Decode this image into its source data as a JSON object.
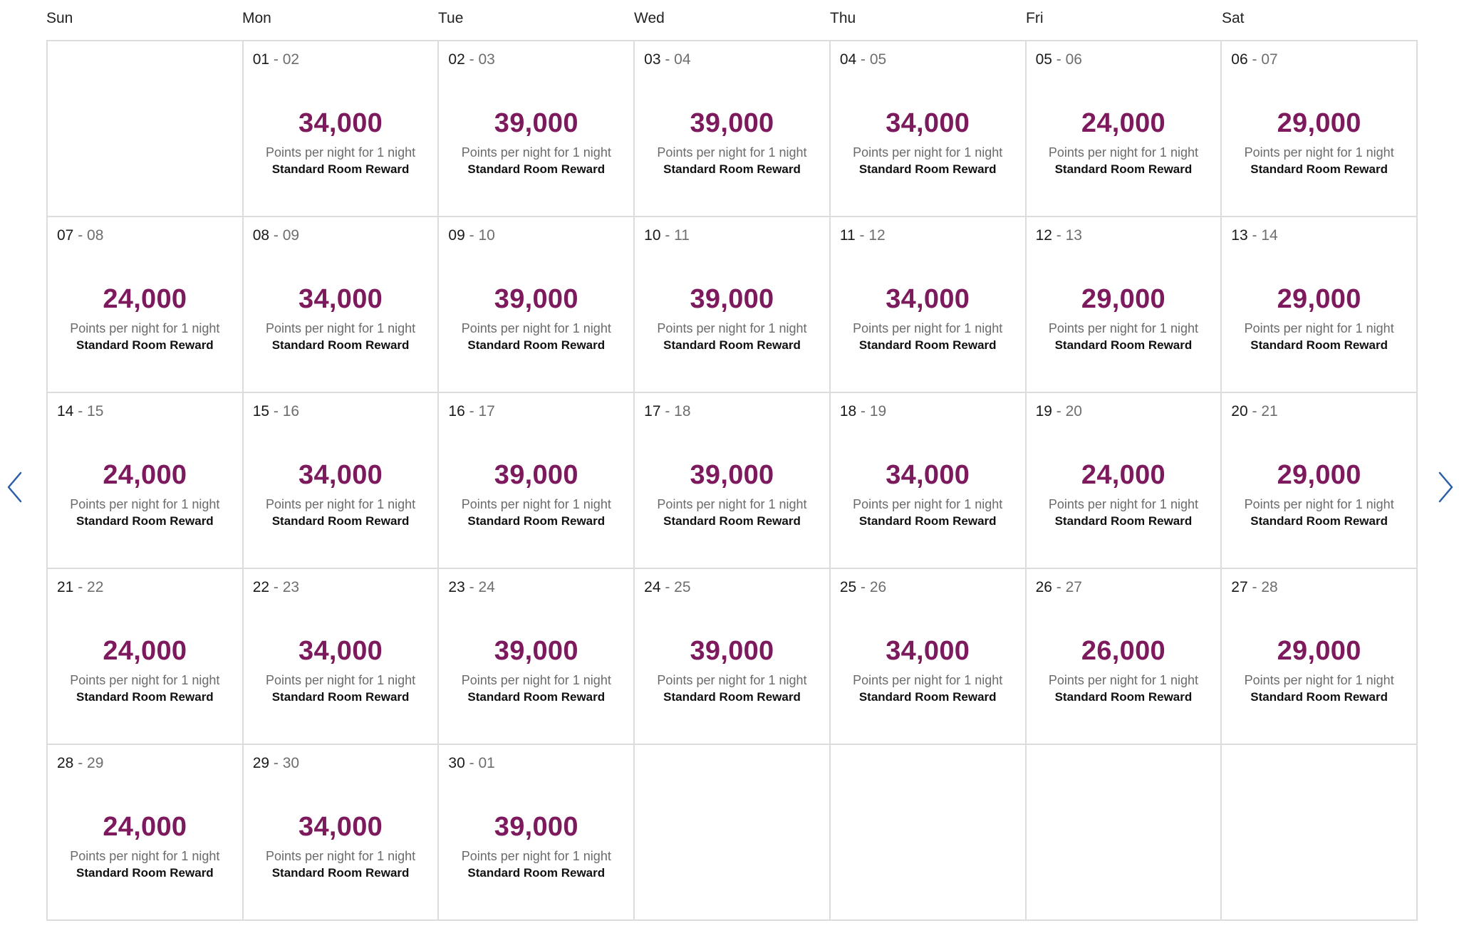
{
  "weekdays": [
    "Sun",
    "Mon",
    "Tue",
    "Wed",
    "Thu",
    "Fri",
    "Sat"
  ],
  "caption": "Points per night for 1 night",
  "reward_type": "Standard Room Reward",
  "accent_color": "#7d1a5d",
  "navigation": {
    "prev_icon": "chevron-left-icon",
    "next_icon": "chevron-right-icon"
  },
  "days": [
    null,
    {
      "start": "01",
      "end": "02",
      "points": "34,000"
    },
    {
      "start": "02",
      "end": "03",
      "points": "39,000"
    },
    {
      "start": "03",
      "end": "04",
      "points": "39,000"
    },
    {
      "start": "04",
      "end": "05",
      "points": "34,000"
    },
    {
      "start": "05",
      "end": "06",
      "points": "24,000"
    },
    {
      "start": "06",
      "end": "07",
      "points": "29,000"
    },
    {
      "start": "07",
      "end": "08",
      "points": "24,000"
    },
    {
      "start": "08",
      "end": "09",
      "points": "34,000"
    },
    {
      "start": "09",
      "end": "10",
      "points": "39,000"
    },
    {
      "start": "10",
      "end": "11",
      "points": "39,000"
    },
    {
      "start": "11",
      "end": "12",
      "points": "34,000"
    },
    {
      "start": "12",
      "end": "13",
      "points": "29,000"
    },
    {
      "start": "13",
      "end": "14",
      "points": "29,000"
    },
    {
      "start": "14",
      "end": "15",
      "points": "24,000"
    },
    {
      "start": "15",
      "end": "16",
      "points": "34,000"
    },
    {
      "start": "16",
      "end": "17",
      "points": "39,000"
    },
    {
      "start": "17",
      "end": "18",
      "points": "39,000"
    },
    {
      "start": "18",
      "end": "19",
      "points": "34,000"
    },
    {
      "start": "19",
      "end": "20",
      "points": "24,000"
    },
    {
      "start": "20",
      "end": "21",
      "points": "29,000"
    },
    {
      "start": "21",
      "end": "22",
      "points": "24,000"
    },
    {
      "start": "22",
      "end": "23",
      "points": "34,000"
    },
    {
      "start": "23",
      "end": "24",
      "points": "39,000"
    },
    {
      "start": "24",
      "end": "25",
      "points": "39,000"
    },
    {
      "start": "25",
      "end": "26",
      "points": "34,000"
    },
    {
      "start": "26",
      "end": "27",
      "points": "26,000"
    },
    {
      "start": "27",
      "end": "28",
      "points": "29,000"
    },
    {
      "start": "28",
      "end": "29",
      "points": "24,000"
    },
    {
      "start": "29",
      "end": "30",
      "points": "34,000"
    },
    {
      "start": "30",
      "end": "01",
      "points": "39,000"
    },
    null,
    null,
    null,
    null
  ]
}
